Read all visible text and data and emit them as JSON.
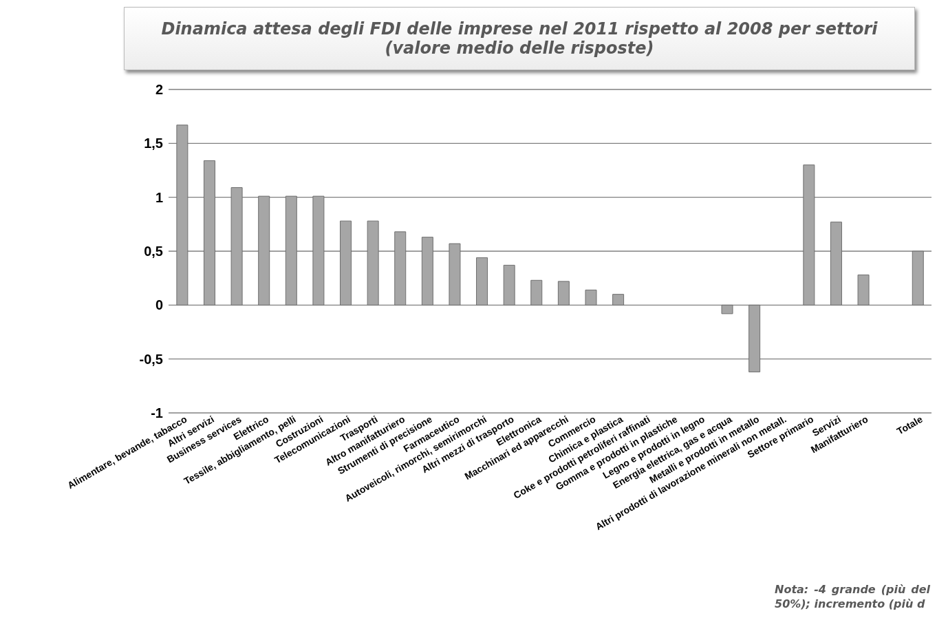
{
  "chart_data": {
    "type": "bar",
    "title": "Dinamica attesa degli FDI delle imprese nel 2011 rispetto al 2008 per settori (valore medio delle risposte)",
    "categories": [
      "Alimentare, bevande, tabacco",
      "Altri servizi",
      "Business services",
      "Elettrico",
      "Tessile, abbigliamento, pelli",
      "Costruzioni",
      "Telecomunicazioni",
      "Trasporti",
      "Altro manifatturiero",
      "Strumenti di precisione",
      "Farmaceutico",
      "Autoveicoli, rimorchi, semirimorchi",
      "Altri mezzi di trasporto",
      "Elettronica",
      "Macchinari ed apparecchi",
      "Commercio",
      "Chimica e plastica",
      "Coke e prodotti petroliferi raffinati",
      "Gomma e prodotti in plastiche",
      "Legno e prodotti in legno",
      "Energia elettrica, gas e acqua",
      "Metalli e prodotti in metallo",
      "Altri prodotti di lavorazione minerali non metall.",
      "Settore primario",
      "Servizi",
      "Manifatturiero",
      null,
      "Totale"
    ],
    "values": [
      1.67,
      1.34,
      1.09,
      1.01,
      1.01,
      1.01,
      0.78,
      0.78,
      0.68,
      0.63,
      0.57,
      0.44,
      0.37,
      0.23,
      0.22,
      0.14,
      0.1,
      0,
      0,
      0,
      -0.08,
      -0.62,
      0,
      1.3,
      0.77,
      0.28,
      null,
      0.5
    ],
    "color": "#a6a6a6",
    "ylim": [
      -1,
      2
    ],
    "yticks": [
      {
        "value": -1,
        "label": "-1"
      },
      {
        "value": -0.5,
        "label": "-0,5"
      },
      {
        "value": 0,
        "label": "0"
      },
      {
        "value": 0.5,
        "label": "0,5"
      },
      {
        "value": 1,
        "label": "1"
      },
      {
        "value": 1.5,
        "label": "1,5"
      },
      {
        "value": 2,
        "label": "2"
      }
    ],
    "grid": "y",
    "annotations": [
      "Nota: -4 grande (più del 50%); incremento (più d"
    ]
  }
}
